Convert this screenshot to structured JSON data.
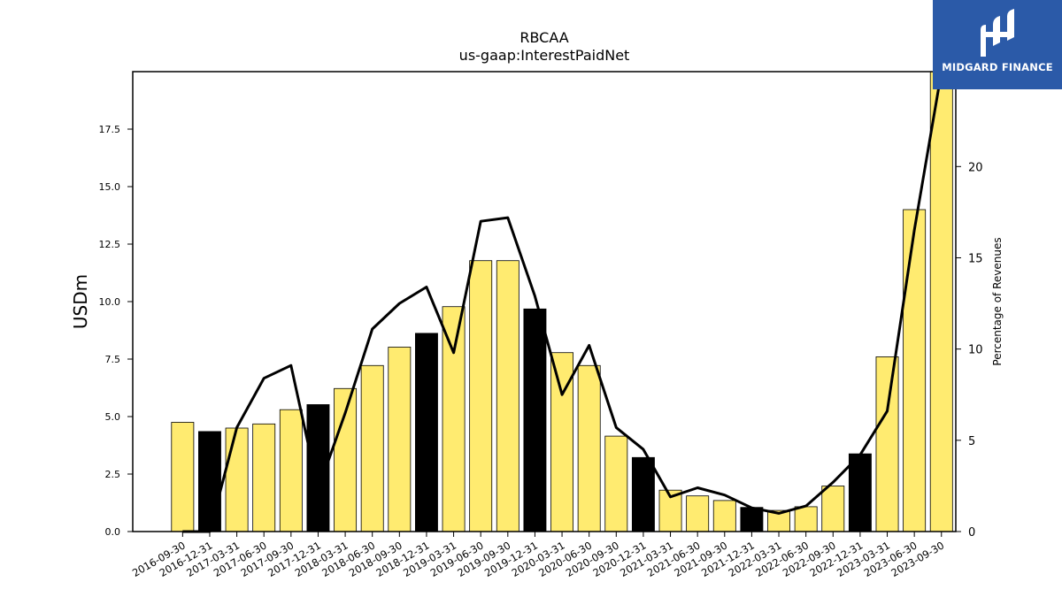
{
  "header": {
    "title": "RBCAA",
    "subtitle": "us-gaap:InterestPaidNet"
  },
  "logo": {
    "text": "MIDGARD FINANCE",
    "background": "#2b5aa8"
  },
  "chart_data": {
    "type": "bar",
    "categories": [
      "2016-09-30",
      "2016-12-31",
      "2017-03-31",
      "2017-06-30",
      "2017-09-30",
      "2017-12-31",
      "2018-03-31",
      "2018-06-30",
      "2018-09-30",
      "2018-12-31",
      "2019-03-31",
      "2019-06-30",
      "2019-09-30",
      "2019-12-31",
      "2020-03-31",
      "2020-06-30",
      "2020-09-30",
      "2020-12-31",
      "2021-03-31",
      "2021-06-30",
      "2021-09-30",
      "2021-12-31",
      "2022-03-31",
      "2022-06-30",
      "2022-09-30",
      "2022-12-31",
      "2023-03-31",
      "2023-06-30",
      "2023-09-30"
    ],
    "values": [
      4.75,
      4.35,
      4.5,
      4.68,
      5.3,
      5.52,
      6.22,
      7.22,
      8.02,
      8.62,
      9.78,
      11.78,
      11.78,
      9.68,
      7.78,
      7.22,
      4.15,
      3.22,
      1.8,
      1.55,
      1.35,
      1.05,
      0.92,
      1.08,
      1.98,
      3.38,
      7.6,
      14.0,
      20.0
    ],
    "bar_highlight": [
      false,
      true,
      false,
      false,
      false,
      true,
      false,
      false,
      false,
      true,
      false,
      false,
      false,
      true,
      false,
      false,
      false,
      true,
      false,
      false,
      false,
      true,
      false,
      false,
      false,
      true,
      false,
      false,
      false
    ],
    "colors": {
      "bar": "#ffeb70",
      "highlight_bar": "#000000",
      "line": "#000000"
    },
    "ylabel": "USDm",
    "ylim": [
      0,
      20
    ],
    "yticks": [
      "0.0",
      "2.5",
      "5.0",
      "7.5",
      "10.0",
      "12.5",
      "15.0",
      "17.5"
    ],
    "secondary": {
      "type": "line",
      "name": "",
      "ylabel": "Percentage of Revenues",
      "ylim": [
        0,
        25.2
      ],
      "yticks": [
        "0",
        "5",
        "10",
        "15",
        "20"
      ],
      "values": [
        0.0,
        0.0,
        5.7,
        8.4,
        9.1,
        2.3,
        6.5,
        11.1,
        12.5,
        13.4,
        9.8,
        17.0,
        17.2,
        12.9,
        7.5,
        10.2,
        5.7,
        4.5,
        1.9,
        2.4,
        2.0,
        1.3,
        1.0,
        1.4,
        2.7,
        4.2,
        6.6,
        16.5,
        25.2
      ]
    },
    "grid": false,
    "legend": "none"
  }
}
